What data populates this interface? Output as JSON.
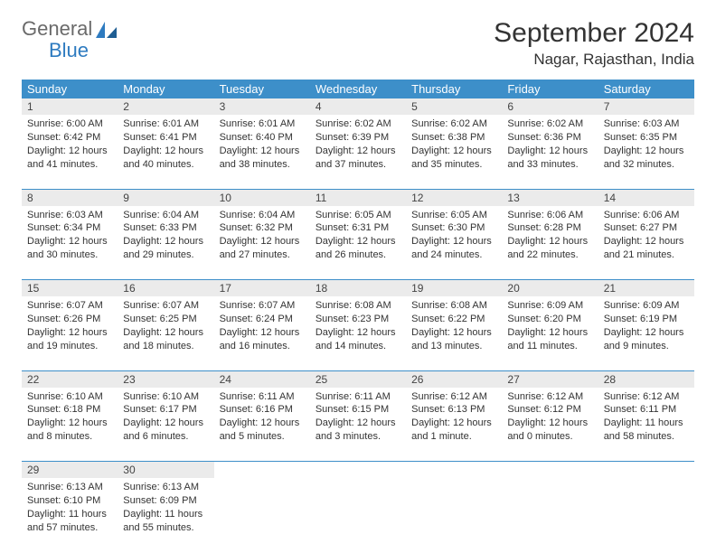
{
  "brand": {
    "general": "General",
    "blue": "Blue"
  },
  "title": "September 2024",
  "location": "Nagar, Rajasthan, India",
  "colors": {
    "header_bg": "#3d8fc9",
    "header_text": "#ffffff",
    "daynum_bg": "#ebebeb",
    "row_divider": "#3d8fc9",
    "logo_gray": "#6a6a6a",
    "logo_blue": "#2e7bc0"
  },
  "day_headers": [
    "Sunday",
    "Monday",
    "Tuesday",
    "Wednesday",
    "Thursday",
    "Friday",
    "Saturday"
  ],
  "weeks": [
    [
      {
        "n": "1",
        "sr": "6:00 AM",
        "ss": "6:42 PM",
        "dl": "12 hours and 41 minutes."
      },
      {
        "n": "2",
        "sr": "6:01 AM",
        "ss": "6:41 PM",
        "dl": "12 hours and 40 minutes."
      },
      {
        "n": "3",
        "sr": "6:01 AM",
        "ss": "6:40 PM",
        "dl": "12 hours and 38 minutes."
      },
      {
        "n": "4",
        "sr": "6:02 AM",
        "ss": "6:39 PM",
        "dl": "12 hours and 37 minutes."
      },
      {
        "n": "5",
        "sr": "6:02 AM",
        "ss": "6:38 PM",
        "dl": "12 hours and 35 minutes."
      },
      {
        "n": "6",
        "sr": "6:02 AM",
        "ss": "6:36 PM",
        "dl": "12 hours and 33 minutes."
      },
      {
        "n": "7",
        "sr": "6:03 AM",
        "ss": "6:35 PM",
        "dl": "12 hours and 32 minutes."
      }
    ],
    [
      {
        "n": "8",
        "sr": "6:03 AM",
        "ss": "6:34 PM",
        "dl": "12 hours and 30 minutes."
      },
      {
        "n": "9",
        "sr": "6:04 AM",
        "ss": "6:33 PM",
        "dl": "12 hours and 29 minutes."
      },
      {
        "n": "10",
        "sr": "6:04 AM",
        "ss": "6:32 PM",
        "dl": "12 hours and 27 minutes."
      },
      {
        "n": "11",
        "sr": "6:05 AM",
        "ss": "6:31 PM",
        "dl": "12 hours and 26 minutes."
      },
      {
        "n": "12",
        "sr": "6:05 AM",
        "ss": "6:30 PM",
        "dl": "12 hours and 24 minutes."
      },
      {
        "n": "13",
        "sr": "6:06 AM",
        "ss": "6:28 PM",
        "dl": "12 hours and 22 minutes."
      },
      {
        "n": "14",
        "sr": "6:06 AM",
        "ss": "6:27 PM",
        "dl": "12 hours and 21 minutes."
      }
    ],
    [
      {
        "n": "15",
        "sr": "6:07 AM",
        "ss": "6:26 PM",
        "dl": "12 hours and 19 minutes."
      },
      {
        "n": "16",
        "sr": "6:07 AM",
        "ss": "6:25 PM",
        "dl": "12 hours and 18 minutes."
      },
      {
        "n": "17",
        "sr": "6:07 AM",
        "ss": "6:24 PM",
        "dl": "12 hours and 16 minutes."
      },
      {
        "n": "18",
        "sr": "6:08 AM",
        "ss": "6:23 PM",
        "dl": "12 hours and 14 minutes."
      },
      {
        "n": "19",
        "sr": "6:08 AM",
        "ss": "6:22 PM",
        "dl": "12 hours and 13 minutes."
      },
      {
        "n": "20",
        "sr": "6:09 AM",
        "ss": "6:20 PM",
        "dl": "12 hours and 11 minutes."
      },
      {
        "n": "21",
        "sr": "6:09 AM",
        "ss": "6:19 PM",
        "dl": "12 hours and 9 minutes."
      }
    ],
    [
      {
        "n": "22",
        "sr": "6:10 AM",
        "ss": "6:18 PM",
        "dl": "12 hours and 8 minutes."
      },
      {
        "n": "23",
        "sr": "6:10 AM",
        "ss": "6:17 PM",
        "dl": "12 hours and 6 minutes."
      },
      {
        "n": "24",
        "sr": "6:11 AM",
        "ss": "6:16 PM",
        "dl": "12 hours and 5 minutes."
      },
      {
        "n": "25",
        "sr": "6:11 AM",
        "ss": "6:15 PM",
        "dl": "12 hours and 3 minutes."
      },
      {
        "n": "26",
        "sr": "6:12 AM",
        "ss": "6:13 PM",
        "dl": "12 hours and 1 minute."
      },
      {
        "n": "27",
        "sr": "6:12 AM",
        "ss": "6:12 PM",
        "dl": "12 hours and 0 minutes."
      },
      {
        "n": "28",
        "sr": "6:12 AM",
        "ss": "6:11 PM",
        "dl": "11 hours and 58 minutes."
      }
    ],
    [
      {
        "n": "29",
        "sr": "6:13 AM",
        "ss": "6:10 PM",
        "dl": "11 hours and 57 minutes."
      },
      {
        "n": "30",
        "sr": "6:13 AM",
        "ss": "6:09 PM",
        "dl": "11 hours and 55 minutes."
      },
      null,
      null,
      null,
      null,
      null
    ]
  ],
  "labels": {
    "sunrise": "Sunrise: ",
    "sunset": "Sunset: ",
    "daylight": "Daylight: "
  }
}
